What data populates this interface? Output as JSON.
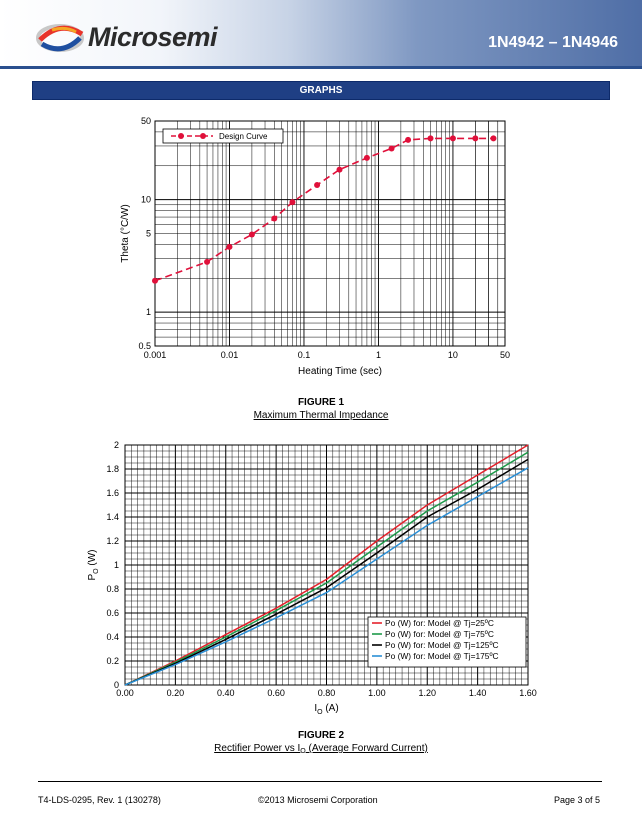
{
  "header": {
    "logo_text": "Microsemi",
    "part_number": "1N4942 – 1N4946",
    "brand_color": "#1f3f84"
  },
  "section": {
    "title": "GRAPHS"
  },
  "figure1": {
    "title": "FIGURE 1",
    "subtitle": "Maximum Thermal Impedance",
    "chart_data": {
      "type": "line",
      "x_scale": "log",
      "y_scale": "log",
      "xlabel": "Heating Time (sec)",
      "ylabel": "Theta (°C/W)",
      "xlim": [
        0.001,
        50
      ],
      "ylim": [
        0.5,
        50
      ],
      "xticks": [
        0.001,
        0.01,
        0.1,
        1,
        10,
        50
      ],
      "xtick_labels": [
        "0.001",
        "0.01",
        "0.1",
        "1",
        "10",
        "50"
      ],
      "yticks": [
        0.5,
        1,
        5,
        10,
        50
      ],
      "ytick_labels": [
        "0.5",
        "1",
        "5",
        "10",
        "50"
      ],
      "legend": "top-left",
      "grid": true,
      "series": [
        {
          "name": "Design Curve",
          "color": "#e0103a",
          "line_style": "dashed",
          "marker": "circle",
          "x": [
            0.001,
            0.005,
            0.01,
            0.02,
            0.04,
            0.07,
            0.15,
            0.3,
            0.7,
            1.5,
            2.5,
            5,
            10,
            20,
            35
          ],
          "y": [
            1.9,
            2.8,
            3.8,
            4.9,
            6.8,
            9.5,
            13.5,
            18.5,
            23.5,
            28.5,
            34,
            35,
            35,
            35,
            35
          ]
        }
      ]
    }
  },
  "figure2": {
    "title": "FIGURE 2",
    "subtitle_prefix": "Rectifier Power vs I",
    "subtitle_sub": "O",
    "subtitle_suffix": " (Average Forward Current)",
    "chart_data": {
      "type": "line",
      "xlabel_main": "I",
      "xlabel_sub": "O",
      "xlabel_unit": " (A)",
      "ylabel_main": "P",
      "ylabel_sub": "O",
      "ylabel_unit": " (W)",
      "xlim": [
        0,
        1.6
      ],
      "ylim": [
        0,
        2
      ],
      "xticks": [
        0,
        0.2,
        0.4,
        0.6,
        0.8,
        1.0,
        1.2,
        1.4,
        1.6
      ],
      "xtick_labels": [
        "0.00",
        "0.20",
        "0.40",
        "0.60",
        "0.80",
        "1.00",
        "1.20",
        "1.40",
        "1.60"
      ],
      "yticks": [
        0,
        0.2,
        0.4,
        0.6,
        0.8,
        1,
        1.2,
        1.4,
        1.6,
        1.8,
        2
      ],
      "ytick_labels": [
        "0",
        "0.2",
        "0.4",
        "0.6",
        "0.8",
        "1",
        "1.2",
        "1.4",
        "1.6",
        "1.8",
        "2"
      ],
      "legend": "bottom-right",
      "grid": true,
      "series": [
        {
          "name": "Po (W) for: Model @ Tj=25ºC",
          "color": "#e4212b",
          "x": [
            0,
            0.2,
            0.4,
            0.6,
            0.8,
            1.0,
            1.2,
            1.4,
            1.6
          ],
          "y": [
            0,
            0.2,
            0.42,
            0.64,
            0.88,
            1.2,
            1.5,
            1.75,
            2.0
          ]
        },
        {
          "name": "Po (W) for: Model @ Tj=75ºC",
          "color": "#1e9a4a",
          "x": [
            0,
            0.2,
            0.4,
            0.6,
            0.8,
            1.0,
            1.2,
            1.4,
            1.6
          ],
          "y": [
            0,
            0.19,
            0.4,
            0.62,
            0.85,
            1.15,
            1.45,
            1.69,
            1.94
          ]
        },
        {
          "name": "Po (W) for: Model @ Tj=125ºC",
          "color": "#000000",
          "x": [
            0,
            0.2,
            0.4,
            0.6,
            0.8,
            1.0,
            1.2,
            1.4,
            1.6
          ],
          "y": [
            0,
            0.18,
            0.38,
            0.59,
            0.81,
            1.1,
            1.4,
            1.63,
            1.88
          ]
        },
        {
          "name": "Po (W) for: Model @ Tj=175ºC",
          "color": "#2a8fd6",
          "x": [
            0,
            0.2,
            0.4,
            0.6,
            0.8,
            1.0,
            1.2,
            1.4,
            1.6
          ],
          "y": [
            0,
            0.17,
            0.36,
            0.56,
            0.77,
            1.05,
            1.33,
            1.57,
            1.81
          ]
        }
      ]
    }
  },
  "footer": {
    "doc_id": "T4-LDS-0295, Rev. 1 (130278)",
    "copyright": "©2013 Microsemi Corporation",
    "page": "Page 3 of 5"
  }
}
